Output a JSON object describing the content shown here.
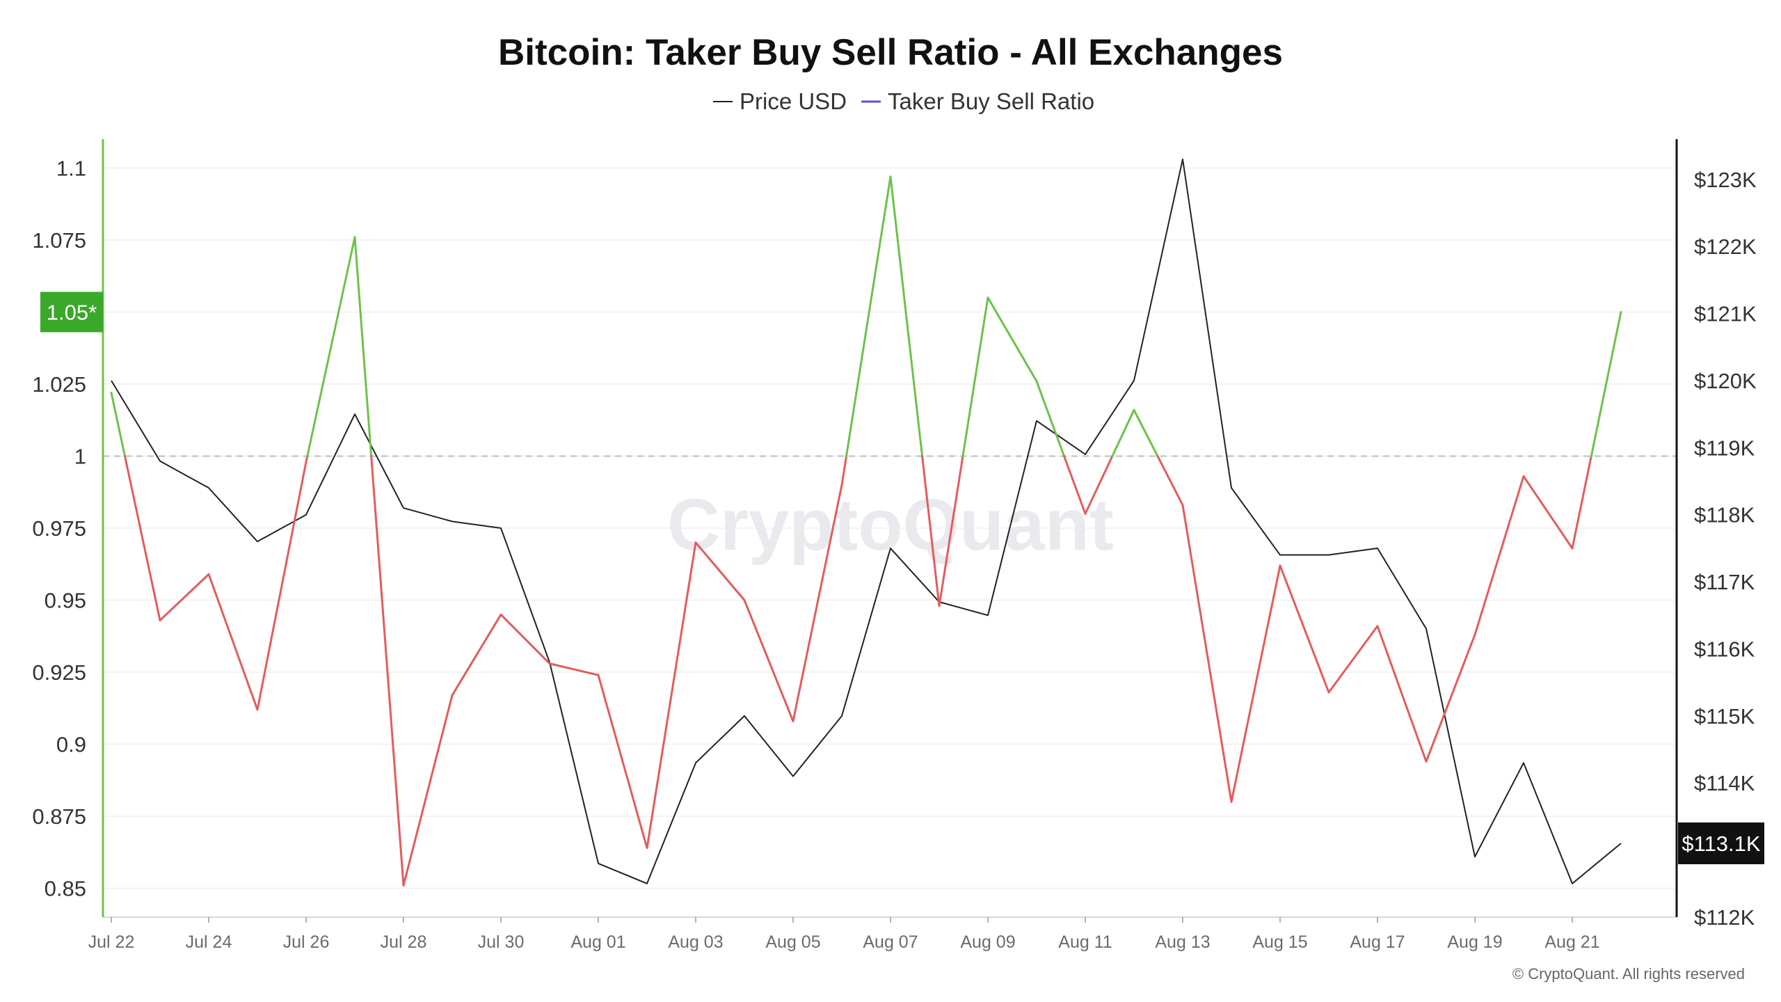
{
  "colors": {
    "price_line": "#222222",
    "ratio_above": "#6cc24a",
    "ratio_below": "#e05d5d",
    "legend_ratio_swatch": "#5b4fd6",
    "left_badge": "#3aa829",
    "right_badge": "#111111",
    "left_axis": "#6cc24a",
    "right_axis": "#111111",
    "grid": "#efefef",
    "reference_line": "#bbbbbb"
  },
  "watermark": "CryptoQuant",
  "copyright": "© CryptoQuant. All rights reserved",
  "chart_data": {
    "type": "line",
    "title": "Bitcoin: Taker Buy Sell Ratio - All Exchanges",
    "legend": [
      "Price USD",
      "Taker Buy Sell Ratio"
    ],
    "x_tick_labels": [
      "Jul 22",
      "Jul 24",
      "Jul 26",
      "Jul 28",
      "Jul 30",
      "Aug 01",
      "Aug 03",
      "Aug 05",
      "Aug 07",
      "Aug 09",
      "Aug 11",
      "Aug 13",
      "Aug 15",
      "Aug 17",
      "Aug 19",
      "Aug 21"
    ],
    "left_axis": {
      "ticks": [
        "1.1",
        "1.075",
        "1.05*",
        "1.025",
        "1",
        "0.975",
        "0.95",
        "0.925",
        "0.9",
        "0.875",
        "0.85"
      ],
      "ylim": [
        0.84,
        1.11
      ],
      "current_label": "1.05*",
      "current_value": 1.05
    },
    "right_axis": {
      "ticks": [
        "$123K",
        "$122K",
        "$121K",
        "$120K",
        "$119K",
        "$118K",
        "$117K",
        "$116K",
        "$115K",
        "$114K",
        "$113.1K",
        "$112K"
      ],
      "ylim": [
        112,
        123.6
      ],
      "current_label": "$113.1K",
      "current_value": 113.1
    },
    "reference_value": 1.0,
    "x": [
      "Jul 22",
      "Jul 23",
      "Jul 24",
      "Jul 25",
      "Jul 26",
      "Jul 27",
      "Jul 28",
      "Jul 29",
      "Jul 30",
      "Jul 31",
      "Aug 01",
      "Aug 02",
      "Aug 03",
      "Aug 04",
      "Aug 05",
      "Aug 06",
      "Aug 07",
      "Aug 08",
      "Aug 09",
      "Aug 10",
      "Aug 11",
      "Aug 12",
      "Aug 13",
      "Aug 14",
      "Aug 15",
      "Aug 16",
      "Aug 17",
      "Aug 18",
      "Aug 19",
      "Aug 20",
      "Aug 21",
      "Aug 22"
    ],
    "series": [
      {
        "name": "Taker Buy Sell Ratio",
        "axis": "left",
        "values": [
          1.022,
          0.943,
          0.959,
          0.912,
          0.998,
          1.076,
          0.851,
          0.917,
          0.945,
          0.928,
          0.924,
          0.864,
          0.97,
          0.95,
          0.908,
          0.99,
          1.097,
          0.948,
          1.055,
          1.026,
          0.98,
          1.016,
          0.983,
          0.88,
          0.962,
          0.918,
          0.941,
          0.894,
          0.938,
          0.993,
          0.968,
          1.05
        ]
      },
      {
        "name": "Price USD",
        "axis": "right",
        "values": [
          120.0,
          118.8,
          118.4,
          117.6,
          118.0,
          119.5,
          118.1,
          117.9,
          117.8,
          115.8,
          112.8,
          112.5,
          114.3,
          115.0,
          114.1,
          115.0,
          117.5,
          116.7,
          116.5,
          119.4,
          118.9,
          120.0,
          123.3,
          118.4,
          117.4,
          117.4,
          117.5,
          116.3,
          112.9,
          114.3,
          112.5,
          113.1
        ]
      }
    ]
  }
}
